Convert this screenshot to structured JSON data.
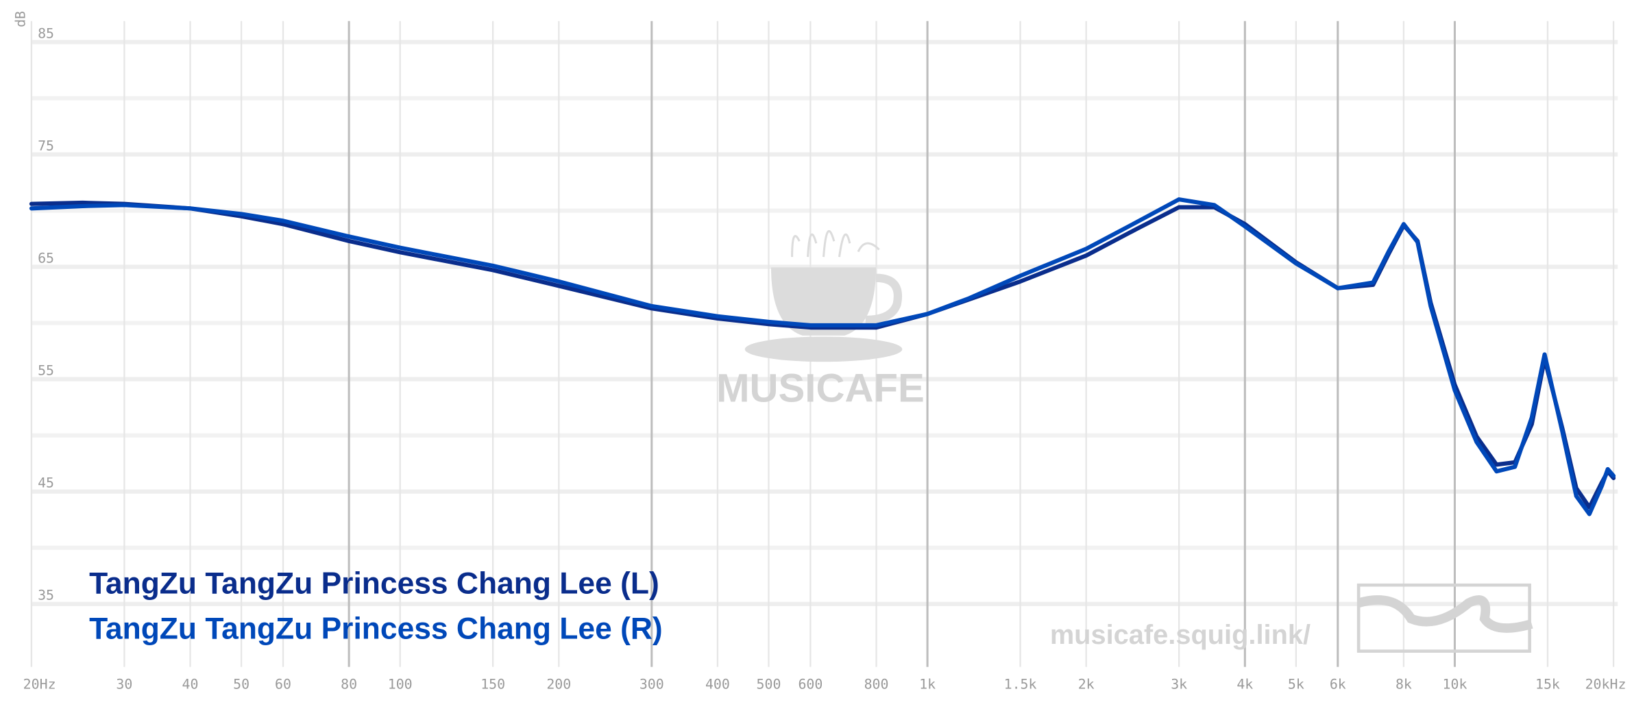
{
  "chart_data": {
    "type": "line",
    "y_label": "dB",
    "log_x": true,
    "xlim": [
      20,
      20000
    ],
    "ylim": [
      30,
      87
    ],
    "yticks": [
      35,
      45,
      55,
      65,
      75,
      85
    ],
    "yticks_minor": [
      40,
      50,
      60,
      70,
      80
    ],
    "xticks": [
      {
        "value": 20,
        "label": "20Hz"
      },
      30,
      40,
      50,
      60,
      80,
      100,
      150,
      200,
      300,
      400,
      500,
      600,
      800,
      {
        "value": 1000,
        "label": "1k"
      },
      {
        "value": 1500,
        "label": "1.5k"
      },
      {
        "value": 2000,
        "label": "2k"
      },
      {
        "value": 3000,
        "label": "3k"
      },
      {
        "value": 4000,
        "label": "4k"
      },
      {
        "value": 5000,
        "label": "5k"
      },
      {
        "value": 6000,
        "label": "6k"
      },
      {
        "value": 8000,
        "label": "8k"
      },
      {
        "value": 10000,
        "label": "10k"
      },
      {
        "value": 15000,
        "label": "15k"
      },
      {
        "value": 20000,
        "label": "20kHz"
      }
    ],
    "xticks_bold": [
      80,
      300,
      1000,
      4000,
      6000,
      10000
    ],
    "x": [
      20,
      25,
      30,
      40,
      50,
      60,
      80,
      100,
      150,
      200,
      300,
      400,
      500,
      600,
      800,
      1000,
      1200,
      1500,
      2000,
      2500,
      3000,
      3500,
      4000,
      5000,
      6000,
      7000,
      7500,
      8000,
      8500,
      9000,
      10000,
      11000,
      12000,
      13000,
      14000,
      14800,
      16000,
      17000,
      18000,
      19000,
      19500,
      20000
    ],
    "series": [
      {
        "name": "TangZu TangZu Princess Chang Lee (L)",
        "color": "#0a2d8c",
        "values": [
          70.6,
          70.7,
          70.6,
          70.2,
          69.5,
          68.8,
          67.3,
          66.3,
          64.7,
          63.3,
          61.3,
          60.4,
          59.9,
          59.6,
          59.6,
          60.8,
          62.1,
          63.7,
          66.0,
          68.4,
          70.3,
          70.3,
          68.8,
          65.4,
          63.1,
          63.4,
          66.2,
          68.7,
          67.3,
          61.8,
          54.5,
          49.9,
          47.4,
          47.6,
          51.0,
          56.8,
          50.6,
          45.3,
          43.6,
          45.8,
          46.8,
          46.2
        ]
      },
      {
        "name": "TangZu TangZu Princess Chang Lee (R)",
        "color": "#0048b9",
        "values": [
          70.2,
          70.4,
          70.5,
          70.2,
          69.7,
          69.1,
          67.7,
          66.7,
          65.1,
          63.7,
          61.5,
          60.6,
          60.1,
          59.8,
          59.8,
          60.8,
          62.2,
          64.2,
          66.6,
          69.0,
          71.0,
          70.5,
          68.6,
          65.3,
          63.1,
          63.6,
          66.4,
          68.8,
          67.2,
          61.5,
          54.0,
          49.4,
          46.8,
          47.2,
          51.6,
          57.2,
          50.3,
          44.6,
          43.0,
          45.5,
          47.0,
          46.4
        ]
      }
    ],
    "watermark_logo": "MUSICAFE",
    "watermark_url": "musicafe.squig.link/"
  }
}
